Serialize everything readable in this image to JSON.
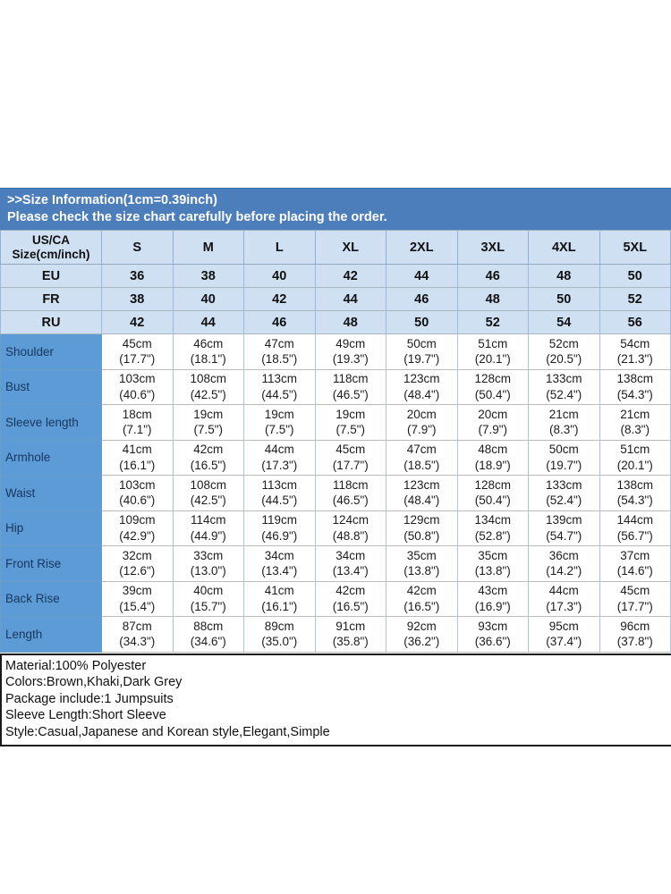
{
  "banner": {
    "line1": ">>Size Information(1cm=0.39inch)",
    "line2": "Please check the size chart carefully before placing the order."
  },
  "size_chart": {
    "corner_label": "US/CA\nSize(cm/inch)",
    "sizes": [
      "S",
      "M",
      "L",
      "XL",
      "2XL",
      "3XL",
      "4XL",
      "5XL"
    ],
    "region_rows": [
      {
        "label": "EU",
        "values": [
          "36",
          "38",
          "40",
          "42",
          "44",
          "46",
          "48",
          "50"
        ]
      },
      {
        "label": "FR",
        "values": [
          "38",
          "40",
          "42",
          "44",
          "46",
          "48",
          "50",
          "52"
        ]
      },
      {
        "label": "RU",
        "values": [
          "42",
          "44",
          "46",
          "48",
          "50",
          "52",
          "54",
          "56"
        ]
      }
    ],
    "measurement_rows": [
      {
        "label": "Shoulder",
        "values": [
          "45cm\n(17.7\")",
          "46cm\n(18.1\")",
          "47cm\n(18.5\")",
          "49cm\n(19.3\")",
          "50cm\n(19.7\")",
          "51cm\n(20.1\")",
          "52cm\n(20.5\")",
          "54cm\n(21.3\")"
        ]
      },
      {
        "label": "Bust",
        "values": [
          "103cm\n(40.6\")",
          "108cm\n(42.5\")",
          "113cm\n(44.5\")",
          "118cm\n(46.5\")",
          "123cm\n(48.4\")",
          "128cm\n(50.4\")",
          "133cm\n(52.4\")",
          "138cm\n(54.3\")"
        ]
      },
      {
        "label": "Sleeve length",
        "values": [
          "18cm\n(7.1\")",
          "19cm\n(7.5\")",
          "19cm\n(7.5\")",
          "19cm\n(7.5\")",
          "20cm\n(7.9\")",
          "20cm\n(7.9\")",
          "21cm\n(8.3\")",
          "21cm\n(8.3\")"
        ]
      },
      {
        "label": "Armhole",
        "values": [
          "41cm\n(16.1\")",
          "42cm\n(16.5\")",
          "44cm\n(17.3\")",
          "45cm\n(17.7\")",
          "47cm\n(18.5\")",
          "48cm\n(18.9\")",
          "50cm\n(19.7\")",
          "51cm\n(20.1\")"
        ]
      },
      {
        "label": "Waist",
        "values": [
          "103cm\n(40.6\")",
          "108cm\n(42.5\")",
          "113cm\n(44.5\")",
          "118cm\n(46.5\")",
          "123cm\n(48.4\")",
          "128cm\n(50.4\")",
          "133cm\n(52.4\")",
          "138cm\n(54.3\")"
        ]
      },
      {
        "label": "Hip",
        "values": [
          "109cm\n(42.9\")",
          "114cm\n(44.9\")",
          "119cm\n(46.9\")",
          "124cm\n(48.8\")",
          "129cm\n(50.8\")",
          "134cm\n(52.8\")",
          "139cm\n(54.7\")",
          "144cm\n(56.7\")"
        ]
      },
      {
        "label": "Front Rise",
        "values": [
          "32cm\n(12.6\")",
          "33cm\n(13.0\")",
          "34cm\n(13.4\")",
          "34cm\n(13.4\")",
          "35cm\n(13.8\")",
          "35cm\n(13.8\")",
          "36cm\n(14.2\")",
          "37cm\n(14.6\")"
        ]
      },
      {
        "label": "Back Rise",
        "values": [
          "39cm\n(15.4\")",
          "40cm\n(15.7\")",
          "41cm\n(16.1\")",
          "42cm\n(16.5\")",
          "42cm\n(16.5\")",
          "43cm\n(16.9\")",
          "44cm\n(17.3\")",
          "45cm\n(17.7\")"
        ]
      },
      {
        "label": "Length",
        "values": [
          "87cm\n(34.3\")",
          "88cm\n(34.6\")",
          "89cm\n(35.0\")",
          "91cm\n(35.8\")",
          "92cm\n(36.2\")",
          "93cm\n(36.6\")",
          "95cm\n(37.4\")",
          "96cm\n(37.8\")"
        ]
      }
    ]
  },
  "product_info": {
    "lines": [
      "Material:100% Polyester",
      "Colors:Brown,Khaki,Dark Grey",
      "Package include:1 Jumpsuits",
      "Sleeve Length:Short Sleeve",
      "Style:Casual,Japanese and Korean style,Elegant,Simple"
    ]
  },
  "colors": {
    "banner_bg": "#4d7ebc",
    "banner_border": "#3a6ca6",
    "header_bg": "#cfe0f2",
    "label_bg": "#5c9bd6",
    "label_text": "#17375e",
    "grid_v": "#a9c6e4"
  }
}
